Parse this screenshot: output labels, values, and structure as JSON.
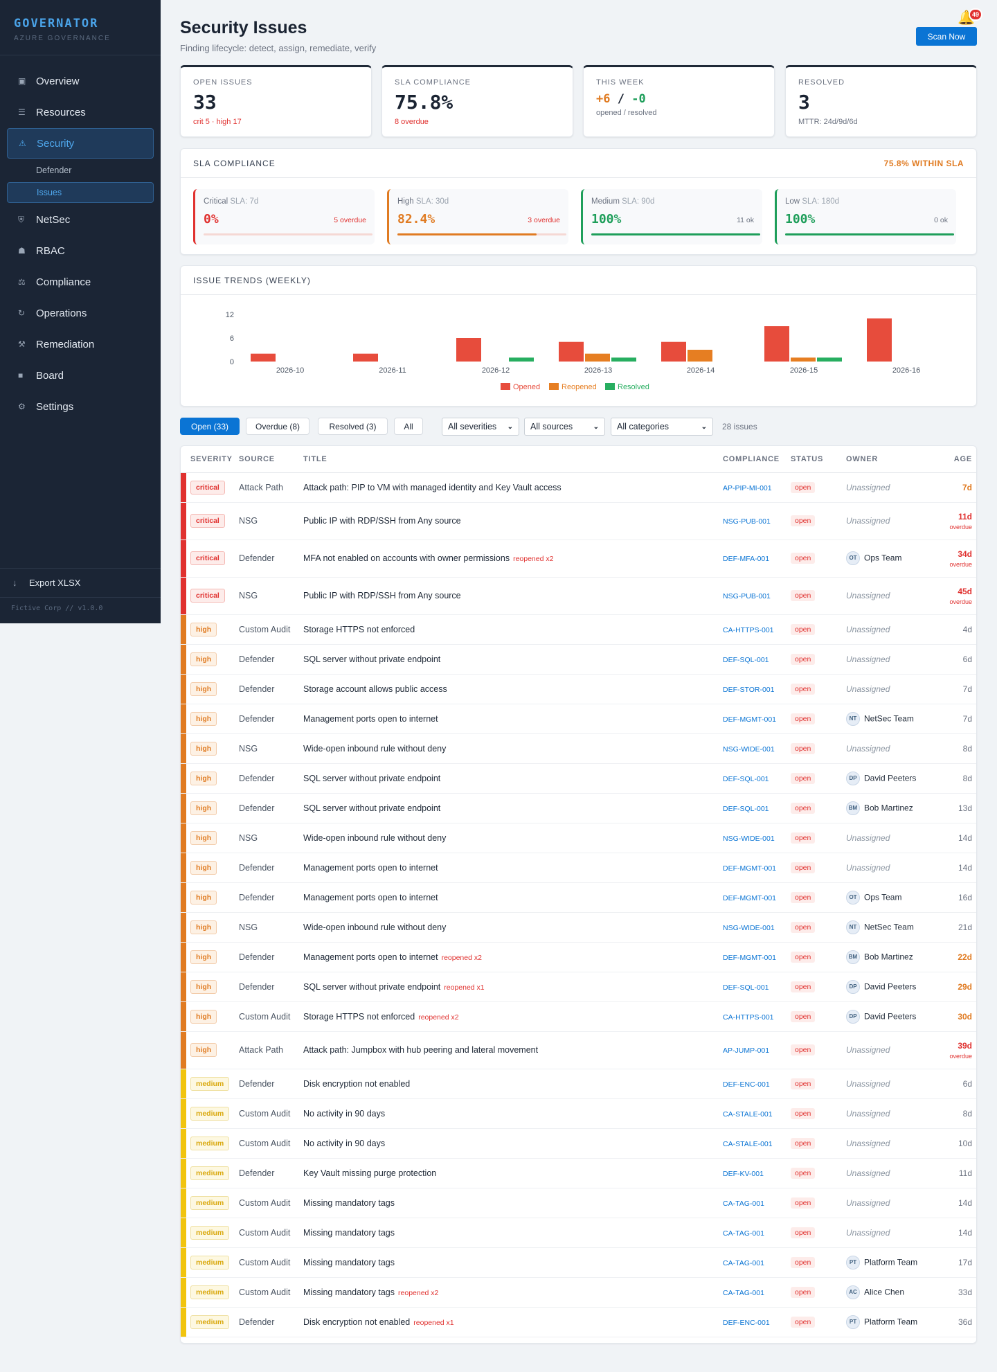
{
  "sidebar": {
    "brand": "GOVERNATOR",
    "brand_sub": "AZURE GOVERNANCE",
    "items": [
      {
        "label": "Overview",
        "icon": "▣"
      },
      {
        "label": "Resources",
        "icon": "☰"
      },
      {
        "label": "Security",
        "icon": "⚠"
      },
      {
        "label": "NetSec",
        "icon": "⛨"
      },
      {
        "label": "RBAC",
        "icon": "☗"
      },
      {
        "label": "Compliance",
        "icon": "⚖"
      },
      {
        "label": "Operations",
        "icon": "↻"
      },
      {
        "label": "Remediation",
        "icon": "⚒"
      },
      {
        "label": "Board",
        "icon": "■"
      },
      {
        "label": "Settings",
        "icon": "⚙"
      }
    ],
    "sub_items": [
      "Defender",
      "Issues"
    ],
    "export_label": "Export XLSX",
    "footer": "Fictive Corp // v1.0.0"
  },
  "header": {
    "title": "Security Issues",
    "subtitle": "Finding lifecycle: detect, assign, remediate, verify",
    "scan_label": "Scan Now",
    "notifications": "49"
  },
  "cards": [
    {
      "label": "OPEN ISSUES",
      "value": "33",
      "sub": "crit 5 · high 17",
      "color": "#e0312f"
    },
    {
      "label": "SLA COMPLIANCE",
      "value": "75.8%",
      "sub": "8 overdue",
      "color": "#e07b22"
    },
    {
      "label": "THIS WEEK",
      "opened": "+6",
      "sep": " / ",
      "resolved": "-0",
      "sub": "opened / resolved",
      "color": "#e07b22"
    },
    {
      "label": "RESOLVED",
      "value": "3",
      "sub": "MTTR: 24d/9d/6d",
      "color": "#1e9e5a"
    }
  ],
  "sla": {
    "title": "SLA COMPLIANCE",
    "summary": "75.8% WITHIN SLA",
    "tiers": [
      {
        "name": "Critical",
        "sla": "SLA: 7d",
        "pct": "0%",
        "pct_value": 0,
        "note": "5 overdue",
        "color": "#e0312f"
      },
      {
        "name": "High",
        "sla": "SLA: 30d",
        "pct": "82.4%",
        "pct_value": 82.4,
        "note": "3 overdue",
        "color": "#e07b22"
      },
      {
        "name": "Medium",
        "sla": "SLA: 90d",
        "pct": "100%",
        "pct_value": 100,
        "note": "11 ok",
        "color": "#1e9e5a"
      },
      {
        "name": "Low",
        "sla": "SLA: 180d",
        "pct": "100%",
        "pct_value": 100,
        "note": "0 ok",
        "color": "#1e9e5a"
      }
    ]
  },
  "chart_panel_title": "ISSUE TRENDS (WEEKLY)",
  "chart_data": {
    "type": "bar",
    "categories": [
      "2026-10",
      "2026-11",
      "2026-12",
      "2026-13",
      "2026-14",
      "2026-15",
      "2026-16"
    ],
    "series": [
      {
        "name": "Opened",
        "color": "#e74c3c",
        "values": [
          2,
          2,
          6,
          5,
          5,
          9,
          11
        ]
      },
      {
        "name": "Reopened",
        "color": "#e67e22",
        "values": [
          0,
          0,
          0,
          2,
          3,
          1,
          0
        ]
      },
      {
        "name": "Resolved",
        "color": "#27ae60",
        "values": [
          0,
          0,
          1,
          1,
          0,
          1,
          0
        ]
      }
    ],
    "yticks": [
      "0",
      "6",
      "12"
    ],
    "ylim": [
      0,
      12
    ],
    "legend": "bottom-center",
    "grid": false
  },
  "filters": {
    "tabs": [
      "Open (33)",
      "Overdue (8)",
      "Resolved (3)",
      "All"
    ],
    "severity": "All severities",
    "source": "All sources",
    "category": "All categories",
    "count": "28 issues"
  },
  "table": {
    "headers": [
      "SEVERITY",
      "SOURCE",
      "TITLE",
      "COMPLIANCE",
      "STATUS",
      "OWNER",
      "AGE"
    ],
    "rows": [
      {
        "sev": "critical",
        "src": "Attack Path",
        "title": "Attack path: PIP to VM with managed identity and Key Vault access",
        "reop": "",
        "comp": "AP-PIP-MI-001",
        "status": "open",
        "owner": "Unassigned",
        "initials": "",
        "age": "7d",
        "overdue": "",
        "age_style": "y"
      },
      {
        "sev": "critical",
        "src": "NSG",
        "title": "Public IP with RDP/SSH from Any source",
        "reop": "",
        "comp": "NSG-PUB-001",
        "status": "open",
        "owner": "Unassigned",
        "initials": "",
        "age": "11d",
        "overdue": "overdue",
        "age_style": "r"
      },
      {
        "sev": "critical",
        "src": "Defender",
        "title": "MFA not enabled on accounts with owner permissions",
        "reop": "reopened x2",
        "comp": "DEF-MFA-001",
        "status": "open",
        "owner": "Ops Team",
        "initials": "OT",
        "age": "34d",
        "overdue": "overdue",
        "age_style": "r"
      },
      {
        "sev": "critical",
        "src": "NSG",
        "title": "Public IP with RDP/SSH from Any source",
        "reop": "",
        "comp": "NSG-PUB-001",
        "status": "open",
        "owner": "Unassigned",
        "initials": "",
        "age": "45d",
        "overdue": "overdue",
        "age_style": "r"
      },
      {
        "sev": "high",
        "src": "Custom Audit",
        "title": "Storage HTTPS not enforced",
        "reop": "",
        "comp": "CA-HTTPS-001",
        "status": "open",
        "owner": "Unassigned",
        "initials": "",
        "age": "4d",
        "overdue": "",
        "age_style": ""
      },
      {
        "sev": "high",
        "src": "Defender",
        "title": "SQL server without private endpoint",
        "reop": "",
        "comp": "DEF-SQL-001",
        "status": "open",
        "owner": "Unassigned",
        "initials": "",
        "age": "6d",
        "overdue": "",
        "age_style": ""
      },
      {
        "sev": "high",
        "src": "Defender",
        "title": "Storage account allows public access",
        "reop": "",
        "comp": "DEF-STOR-001",
        "status": "open",
        "owner": "Unassigned",
        "initials": "",
        "age": "7d",
        "overdue": "",
        "age_style": ""
      },
      {
        "sev": "high",
        "src": "Defender",
        "title": "Management ports open to internet",
        "reop": "",
        "comp": "DEF-MGMT-001",
        "status": "open",
        "owner": "NetSec Team",
        "initials": "NT",
        "age": "7d",
        "overdue": "",
        "age_style": ""
      },
      {
        "sev": "high",
        "src": "NSG",
        "title": "Wide-open inbound rule without deny",
        "reop": "",
        "comp": "NSG-WIDE-001",
        "status": "open",
        "owner": "Unassigned",
        "initials": "",
        "age": "8d",
        "overdue": "",
        "age_style": ""
      },
      {
        "sev": "high",
        "src": "Defender",
        "title": "SQL server without private endpoint",
        "reop": "",
        "comp": "DEF-SQL-001",
        "status": "open",
        "owner": "David Peeters",
        "initials": "DP",
        "age": "8d",
        "overdue": "",
        "age_style": ""
      },
      {
        "sev": "high",
        "src": "Defender",
        "title": "SQL server without private endpoint",
        "reop": "",
        "comp": "DEF-SQL-001",
        "status": "open",
        "owner": "Bob Martinez",
        "initials": "BM",
        "age": "13d",
        "overdue": "",
        "age_style": ""
      },
      {
        "sev": "high",
        "src": "NSG",
        "title": "Wide-open inbound rule without deny",
        "reop": "",
        "comp": "NSG-WIDE-001",
        "status": "open",
        "owner": "Unassigned",
        "initials": "",
        "age": "14d",
        "overdue": "",
        "age_style": ""
      },
      {
        "sev": "high",
        "src": "Defender",
        "title": "Management ports open to internet",
        "reop": "",
        "comp": "DEF-MGMT-001",
        "status": "open",
        "owner": "Unassigned",
        "initials": "",
        "age": "14d",
        "overdue": "",
        "age_style": ""
      },
      {
        "sev": "high",
        "src": "Defender",
        "title": "Management ports open to internet",
        "reop": "",
        "comp": "DEF-MGMT-001",
        "status": "open",
        "owner": "Ops Team",
        "initials": "OT",
        "age": "16d",
        "overdue": "",
        "age_style": ""
      },
      {
        "sev": "high",
        "src": "NSG",
        "title": "Wide-open inbound rule without deny",
        "reop": "",
        "comp": "NSG-WIDE-001",
        "status": "open",
        "owner": "NetSec Team",
        "initials": "NT",
        "age": "21d",
        "overdue": "",
        "age_style": ""
      },
      {
        "sev": "high",
        "src": "Defender",
        "title": "Management ports open to internet",
        "reop": "reopened x2",
        "comp": "DEF-MGMT-001",
        "status": "open",
        "owner": "Bob Martinez",
        "initials": "BM",
        "age": "22d",
        "overdue": "",
        "age_style": "y"
      },
      {
        "sev": "high",
        "src": "Defender",
        "title": "SQL server without private endpoint",
        "reop": "reopened x1",
        "comp": "DEF-SQL-001",
        "status": "open",
        "owner": "David Peeters",
        "initials": "DP",
        "age": "29d",
        "overdue": "",
        "age_style": "y"
      },
      {
        "sev": "high",
        "src": "Custom Audit",
        "title": "Storage HTTPS not enforced",
        "reop": "reopened x2",
        "comp": "CA-HTTPS-001",
        "status": "open",
        "owner": "David Peeters",
        "initials": "DP",
        "age": "30d",
        "overdue": "",
        "age_style": "y"
      },
      {
        "sev": "high",
        "src": "Attack Path",
        "title": "Attack path: Jumpbox with hub peering and lateral movement",
        "reop": "",
        "comp": "AP-JUMP-001",
        "status": "open",
        "owner": "Unassigned",
        "initials": "",
        "age": "39d",
        "overdue": "overdue",
        "age_style": "r"
      },
      {
        "sev": "medium",
        "src": "Defender",
        "title": "Disk encryption not enabled",
        "reop": "",
        "comp": "DEF-ENC-001",
        "status": "open",
        "owner": "Unassigned",
        "initials": "",
        "age": "6d",
        "overdue": "",
        "age_style": ""
      },
      {
        "sev": "medium",
        "src": "Custom Audit",
        "title": "No activity in 90 days",
        "reop": "",
        "comp": "CA-STALE-001",
        "status": "open",
        "owner": "Unassigned",
        "initials": "",
        "age": "8d",
        "overdue": "",
        "age_style": ""
      },
      {
        "sev": "medium",
        "src": "Custom Audit",
        "title": "No activity in 90 days",
        "reop": "",
        "comp": "CA-STALE-001",
        "status": "open",
        "owner": "Unassigned",
        "initials": "",
        "age": "10d",
        "overdue": "",
        "age_style": ""
      },
      {
        "sev": "medium",
        "src": "Defender",
        "title": "Key Vault missing purge protection",
        "reop": "",
        "comp": "DEF-KV-001",
        "status": "open",
        "owner": "Unassigned",
        "initials": "",
        "age": "11d",
        "overdue": "",
        "age_style": ""
      },
      {
        "sev": "medium",
        "src": "Custom Audit",
        "title": "Missing mandatory tags",
        "reop": "",
        "comp": "CA-TAG-001",
        "status": "open",
        "owner": "Unassigned",
        "initials": "",
        "age": "14d",
        "overdue": "",
        "age_style": ""
      },
      {
        "sev": "medium",
        "src": "Custom Audit",
        "title": "Missing mandatory tags",
        "reop": "",
        "comp": "CA-TAG-001",
        "status": "open",
        "owner": "Unassigned",
        "initials": "",
        "age": "14d",
        "overdue": "",
        "age_style": ""
      },
      {
        "sev": "medium",
        "src": "Custom Audit",
        "title": "Missing mandatory tags",
        "reop": "",
        "comp": "CA-TAG-001",
        "status": "open",
        "owner": "Platform Team",
        "initials": "PT",
        "age": "17d",
        "overdue": "",
        "age_style": ""
      },
      {
        "sev": "medium",
        "src": "Custom Audit",
        "title": "Missing mandatory tags",
        "reop": "reopened x2",
        "comp": "CA-TAG-001",
        "status": "open",
        "owner": "Alice Chen",
        "initials": "AC",
        "age": "33d",
        "overdue": "",
        "age_style": ""
      },
      {
        "sev": "medium",
        "src": "Defender",
        "title": "Disk encryption not enabled",
        "reop": "reopened x1",
        "comp": "DEF-ENC-001",
        "status": "open",
        "owner": "Platform Team",
        "initials": "PT",
        "age": "36d",
        "overdue": "",
        "age_style": ""
      }
    ]
  },
  "colors": {
    "critical": "#e0312f",
    "high": "#e07b22",
    "medium": "#f1c40f",
    "accent": "#0a74d4",
    "sidebar_bg": "#1b2535"
  }
}
